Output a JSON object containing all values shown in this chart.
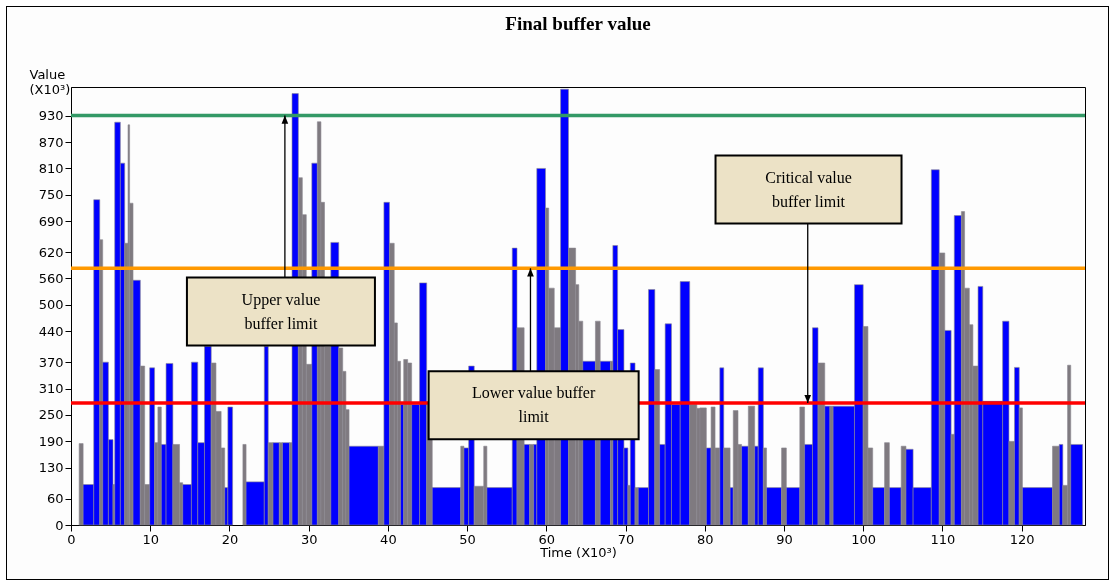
{
  "chart_data": {
    "type": "histogram",
    "title": "Final buffer value",
    "xlabel": "Time (X10³)",
    "ylabel": "Value (X10³)",
    "xlim": [
      0,
      128
    ],
    "ylim": [
      0,
      995
    ],
    "xticks": [
      0,
      10,
      20,
      30,
      40,
      50,
      60,
      70,
      80,
      90,
      100,
      110,
      120
    ],
    "yticks": [
      0,
      60,
      130,
      190,
      250,
      310,
      370,
      440,
      500,
      560,
      620,
      690,
      750,
      810,
      870,
      930
    ],
    "bins": [
      1.03,
      1.53,
      2.87,
      3.63,
      4.0,
      4.72,
      5.3,
      5.52,
      6.23,
      6.78,
      7.2,
      7.4,
      7.83,
      8.75,
      9.3,
      9.93,
      10.55,
      10.97,
      11.4,
      12.0,
      12.86,
      13.7,
      14.1,
      15.2,
      16.0,
      16.85,
      17.7,
      18.3,
      18.95,
      19.4,
      19.8,
      20.4,
      21.7,
      22.1,
      24.4,
      24.9,
      25.5,
      26.3,
      26.7,
      27.6,
      27.9,
      28.7,
      29.2,
      29.7,
      30.4,
      31.1,
      31.55,
      32.0,
      32.8,
      33.8,
      34.3,
      34.7,
      35.1,
      38.8,
      39.5,
      40.2,
      40.8,
      41.2,
      41.6,
      42.0,
      42.5,
      43.0,
      44.0,
      44.9,
      45.6,
      49.2,
      49.6,
      50.2,
      50.9,
      52.1,
      52.5,
      55.7,
      56.3,
      57.2,
      57.9,
      58.4,
      58.8,
      59.9,
      60.3,
      61.0,
      61.8,
      62.8,
      63.7,
      64.1,
      64.6,
      66.2,
      66.8,
      68.1,
      68.4,
      69.0,
      69.8,
      70.3,
      70.6,
      71.2,
      71.6,
      72.9,
      73.7,
      74.3,
      75.0,
      75.8,
      76.9,
      78.1,
      79.0,
      79.4,
      80.2,
      80.8,
      81.3,
      81.9,
      82.4,
      83.2,
      83.6,
      84.2,
      84.65,
      85.5,
      86.3,
      86.75,
      87.4,
      87.8,
      89.7,
      90.3,
      92.0,
      92.6,
      93.6,
      94.3,
      95.15,
      95.8,
      96.2,
      98.9,
      100.0,
      100.6,
      101.2,
      102.7,
      103.3,
      104.8,
      105.4,
      106.3,
      108.6,
      109.6,
      110.3,
      111.1,
      111.5,
      112.4,
      112.8,
      113.4,
      113.85,
      114.5,
      115.1,
      117.6,
      118.4,
      119.1,
      119.7,
      120.1,
      123.9,
      124.75,
      125.2,
      125.8,
      126.2,
      127.7
    ],
    "values": [
      185,
      92,
      739,
      648,
      370,
      194,
      92,
      915,
      822,
      640,
      909,
      731,
      556,
      361,
      92,
      357,
      187,
      268,
      183,
      367,
      183,
      96,
      92,
      370,
      187,
      406,
      368,
      258,
      175,
      85,
      268,
      null,
      183,
      98,
      406,
      187,
      187,
      187,
      187,
      187,
      980,
      789,
      705,
      365,
      822,
      916,
      733,
      406,
      642,
      402,
      349,
      262,
      179,
      179,
      733,
      640,
      459,
      372,
      274,
      376,
      368,
      274,
      550,
      274,
      85,
      179,
      175,
      361,
      88,
      179,
      85,
      629,
      448,
      183,
      183,
      183,
      810,
      720,
      538,
      448,
      990,
      629,
      546,
      463,
      372,
      463,
      372,
      372,
      635,
      444,
      175,
      90,
      368,
      85,
      85,
      535,
      353,
      183,
      457,
      274,
      553,
      274,
      265,
      266,
      175,
      268,
      175,
      357,
      175,
      85,
      260,
      183,
      179,
      270,
      179,
      357,
      175,
      85,
      175,
      85,
      268,
      183,
      448,
      368,
      270,
      270,
      270,
      546,
      451,
      175,
      85,
      187,
      85,
      179,
      172,
      85,
      807,
      618,
      442,
      206,
      703,
      712,
      538,
      455,
      361,
      542,
      281,
      463,
      190,
      358,
      266,
      85,
      179,
      183,
      90,
      363,
      183
    ],
    "colors": [
      "#7f7a80",
      "#0000ff",
      "#0000ff",
      "#7f7a80",
      "#0000ff",
      "#0000ff",
      "#7f7a80",
      "#0000ff",
      "#0000ff",
      "#7f7a80",
      "#7f7a80",
      "#7f7a80",
      "#0000ff",
      "#7f7a80",
      "#7f7a80",
      "#0000ff",
      "#7f7a80",
      "#7f7a80",
      "#0000ff",
      "#0000ff",
      "#7f7a80",
      "#7f7a80",
      "#0000ff",
      "#0000ff",
      "#0000ff",
      "#0000ff",
      "#7f7a80",
      "#7f7a80",
      "#7f7a80",
      "#0000ff",
      "#0000ff",
      "#7f7a80",
      "#7f7a80",
      "#0000ff",
      "#0000ff",
      "#7f7a80",
      "#0000ff",
      "#7f7a80",
      "#0000ff",
      "#7f7a80",
      "#0000ff",
      "#7f7a80",
      "#7f7a80",
      "#7f7a80",
      "#0000ff",
      "#7f7a80",
      "#7f7a80",
      "#7f7a80",
      "#0000ff",
      "#7f7a80",
      "#7f7a80",
      "#7f7a80",
      "#0000ff",
      "#7f7a80",
      "#0000ff",
      "#7f7a80",
      "#7f7a80",
      "#7f7a80",
      "#0000ff",
      "#7f7a80",
      "#7f7a80",
      "#0000ff",
      "#0000ff",
      "#7f7a80",
      "#0000ff",
      "#7f7a80",
      "#0000ff",
      "#0000ff",
      "#7f7a80",
      "#7f7a80",
      "#0000ff",
      "#0000ff",
      "#7f7a80",
      "#0000ff",
      "#7f7a80",
      "#0000ff",
      "#0000ff",
      "#7f7a80",
      "#7f7a80",
      "#7f7a80",
      "#0000ff",
      "#7f7a80",
      "#7f7a80",
      "#7f7a80",
      "#0000ff",
      "#7f7a80",
      "#0000ff",
      "#7f7a80",
      "#0000ff",
      "#0000ff",
      "#0000ff",
      "#7f7a80",
      "#0000ff",
      "#7f7a80",
      "#0000ff",
      "#0000ff",
      "#7f7a80",
      "#0000ff",
      "#0000ff",
      "#0000ff",
      "#0000ff",
      "#7f7a80",
      "#7f7a80",
      "#7f7a80",
      "#0000ff",
      "#7f7a80",
      "#7f7a80",
      "#0000ff",
      "#7f7a80",
      "#0000ff",
      "#7f7a80",
      "#7f7a80",
      "#0000ff",
      "#7f7a80",
      "#0000ff",
      "#0000ff",
      "#7f7a80",
      "#0000ff",
      "#7f7a80",
      "#0000ff",
      "#7f7a80",
      "#0000ff",
      "#0000ff",
      "#7f7a80",
      "#0000ff",
      "#7f7a80",
      "#0000ff",
      "#0000ff",
      "#7f7a80",
      "#7f7a80",
      "#0000ff",
      "#7f7a80",
      "#0000ff",
      "#7f7a80",
      "#0000ff",
      "#0000ff",
      "#0000ff",
      "#7f7a80",
      "#0000ff",
      "#7f7a80",
      "#0000ff",
      "#7f7a80",
      "#7f7a80",
      "#7f7a80",
      "#7f7a80",
      "#0000ff",
      "#0000ff",
      "#0000ff",
      "#7f7a80",
      "#0000ff",
      "#7f7a80",
      "#0000ff",
      "#7f7a80",
      "#0000ff",
      "#7f7a80",
      "#7f7a80",
      "#0000ff"
    ],
    "ref_lines": [
      {
        "axis": "y",
        "value": 930,
        "color": "#339966"
      },
      {
        "axis": "y",
        "value": 583,
        "color": "#ff9900"
      },
      {
        "axis": "y",
        "value": 277,
        "color": "#ff0000"
      }
    ],
    "annotations": [
      {
        "text": "Upper value buffer limit",
        "x": 27,
        "y": 930
      },
      {
        "text": "Lower value buffer limit",
        "x": 58,
        "y": 583
      },
      {
        "text": "Critical value buffer limit",
        "x": 93,
        "y": 277
      }
    ]
  }
}
